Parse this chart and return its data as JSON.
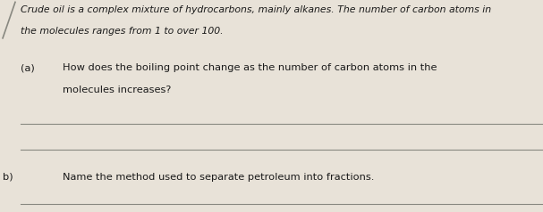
{
  "bg_color": "#e8e2d8",
  "text_color": "#1a1a1a",
  "intro_text_line1": "Crude oil is a complex mixture of hydrocarbons, mainly alkanes. The number of carbon atoms in",
  "intro_text_line2": "the molecules ranges from 1 to over 100.",
  "question_a_label": "(a)",
  "question_a_text": "How does the boiling point change as the number of carbon atoms in the",
  "question_a_text2": "molecules increases?",
  "question_b_label": "b)",
  "question_b_text": "Name the method used to separate petroleum into fractions.",
  "line_color": "#888880",
  "intro_fontsize": 7.8,
  "question_fontsize": 8.2,
  "figsize": [
    6.07,
    2.38
  ],
  "dpi": 100
}
